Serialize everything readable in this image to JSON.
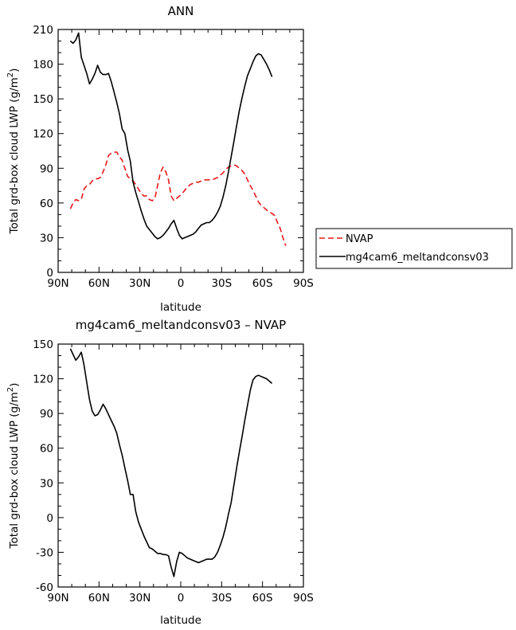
{
  "chart_data": [
    {
      "type": "line",
      "title": "ANN",
      "xlabel": "latitude",
      "ylabel": "Total grd-box cloud LWP (g/m²)",
      "ylabel_main": "Total grd-box cloud LWP (g/m",
      "ylabel_sup": "2",
      "ylabel_tail": ")",
      "xlim": [
        90,
        -90
      ],
      "ylim": [
        0,
        210
      ],
      "x_ticks": [
        90,
        60,
        30,
        0,
        -30,
        -60,
        -90
      ],
      "x_tick_labels": [
        "90N",
        "60N",
        "30N",
        "0",
        "30S",
        "60S",
        "90S"
      ],
      "y_ticks": [
        0,
        30,
        60,
        90,
        120,
        150,
        180,
        210
      ],
      "y_tick_labels": [
        "0",
        "30",
        "60",
        "90",
        "120",
        "150",
        "180",
        "210"
      ],
      "legend_placement": "outside-right",
      "series": [
        {
          "name": "NVAP",
          "color": "#e8191b",
          "dash": true,
          "x": [
            81,
            79,
            77,
            75,
            73,
            71,
            69,
            67,
            65,
            63,
            61,
            59,
            57,
            55,
            53,
            51,
            49,
            47,
            45,
            43,
            41,
            39,
            37,
            35,
            33,
            31,
            29,
            27,
            25,
            23,
            21,
            19,
            17,
            15,
            13,
            11,
            9,
            7,
            5,
            3,
            1,
            -1,
            -3,
            -5,
            -7,
            -9,
            -11,
            -13,
            -15,
            -17,
            -19,
            -21,
            -23,
            -25,
            -27,
            -29,
            -31,
            -33,
            -35,
            -37,
            -39,
            -41,
            -43,
            -45,
            -47,
            -49,
            -51,
            -53,
            -55,
            -57,
            -59,
            -61,
            -63,
            -65,
            -67,
            -69,
            -71,
            -73,
            -75,
            -77
          ],
          "y": [
            55,
            60,
            63,
            62,
            63,
            72,
            75,
            76,
            79,
            81,
            81,
            82,
            87,
            93,
            101,
            103,
            104,
            104,
            100,
            97,
            90,
            83,
            81,
            79,
            76,
            72,
            68,
            66,
            66,
            63,
            62,
            64,
            75,
            86,
            91,
            87,
            80,
            66,
            62,
            64,
            66,
            68,
            71,
            74,
            76,
            77,
            78,
            78,
            79,
            80,
            80,
            80,
            80,
            81,
            82,
            84,
            86,
            89,
            91,
            92,
            93,
            92,
            90,
            88,
            85,
            80,
            75,
            71,
            66,
            61,
            58,
            56,
            54,
            52,
            51,
            49,
            43,
            38,
            30,
            23
          ]
        },
        {
          "name": "mg4cam6_meltandconsv03",
          "color": "#000000",
          "dash": false,
          "x": [
            81,
            79,
            77,
            75,
            73,
            71,
            69,
            67,
            65,
            63,
            61,
            59,
            57,
            55,
            53,
            51,
            49,
            47,
            45,
            43,
            41,
            39,
            37,
            35,
            33,
            31,
            29,
            27,
            25,
            23,
            21,
            19,
            17,
            15,
            13,
            11,
            9,
            7,
            5,
            3,
            1,
            -1,
            -3,
            -5,
            -7,
            -9,
            -11,
            -13,
            -15,
            -17,
            -19,
            -21,
            -23,
            -25,
            -27,
            -29,
            -31,
            -33,
            -35,
            -37,
            -39,
            -41,
            -43,
            -45,
            -47,
            -49,
            -51,
            -53,
            -55,
            -57,
            -59,
            -61,
            -63,
            -65,
            -67
          ],
          "y": [
            200,
            198,
            201,
            207,
            186,
            179,
            172,
            163,
            167,
            172,
            179,
            173,
            171,
            171,
            172,
            165,
            156,
            147,
            137,
            124,
            120,
            106,
            96,
            78,
            69,
            61,
            53,
            46,
            40,
            37,
            34,
            31,
            29,
            30,
            32,
            35,
            38,
            42,
            45,
            38,
            32,
            29,
            30,
            31,
            32,
            33,
            35,
            38,
            41,
            42,
            43,
            43,
            45,
            48,
            52,
            57,
            65,
            75,
            87,
            100,
            113,
            127,
            140,
            151,
            161,
            170,
            176,
            182,
            187,
            189,
            188,
            184,
            180,
            175,
            169
          ]
        }
      ]
    },
    {
      "type": "line",
      "title": "mg4cam6_meltandconsv03 – NVAP",
      "xlabel": "latitude",
      "ylabel": "Total grd-box cloud LWP (g/m²)",
      "ylabel_main": "Total grd-box cloud LWP (g/m",
      "ylabel_sup": "2",
      "ylabel_tail": ")",
      "xlim": [
        90,
        -90
      ],
      "ylim": [
        -60,
        150
      ],
      "x_ticks": [
        90,
        60,
        30,
        0,
        -30,
        -60,
        -90
      ],
      "x_tick_labels": [
        "90N",
        "60N",
        "30N",
        "0",
        "30S",
        "60S",
        "90S"
      ],
      "y_ticks": [
        -60,
        -30,
        0,
        30,
        60,
        90,
        120,
        150
      ],
      "y_tick_labels": [
        "-60",
        "-30",
        "0",
        "30",
        "60",
        "90",
        "120",
        "150"
      ],
      "series": [
        {
          "color": "#000000",
          "dash": false,
          "x": [
            81,
            79,
            77,
            75,
            73,
            71,
            69,
            67,
            65,
            63,
            61,
            59,
            57,
            55,
            53,
            51,
            49,
            47,
            45,
            43,
            41,
            39,
            37,
            35,
            33,
            31,
            29,
            27,
            25,
            23,
            21,
            19,
            17,
            15,
            13,
            11,
            9,
            7,
            5,
            3,
            1,
            -1,
            -3,
            -5,
            -7,
            -9,
            -11,
            -13,
            -15,
            -17,
            -19,
            -21,
            -23,
            -25,
            -27,
            -29,
            -31,
            -33,
            -35,
            -37,
            -39,
            -41,
            -43,
            -45,
            -47,
            -49,
            -51,
            -53,
            -55,
            -57,
            -59,
            -61,
            -63,
            -65,
            -67
          ],
          "y": [
            146,
            141,
            136,
            139,
            143,
            132,
            117,
            102,
            92,
            88,
            89,
            93,
            98,
            94,
            89,
            84,
            79,
            73,
            63,
            54,
            43,
            32,
            20,
            20,
            5,
            -4,
            -10,
            -16,
            -21,
            -26,
            -27,
            -29,
            -31,
            -31,
            -32,
            -32,
            -33,
            -43,
            -51,
            -38,
            -30,
            -31,
            -33,
            -35,
            -36,
            -37,
            -38,
            -39,
            -38,
            -37,
            -36,
            -36,
            -36,
            -34,
            -30,
            -24,
            -17,
            -8,
            3,
            13,
            28,
            43,
            57,
            70,
            84,
            97,
            110,
            119,
            122,
            123,
            122,
            121,
            120,
            118,
            116
          ]
        }
      ]
    }
  ]
}
